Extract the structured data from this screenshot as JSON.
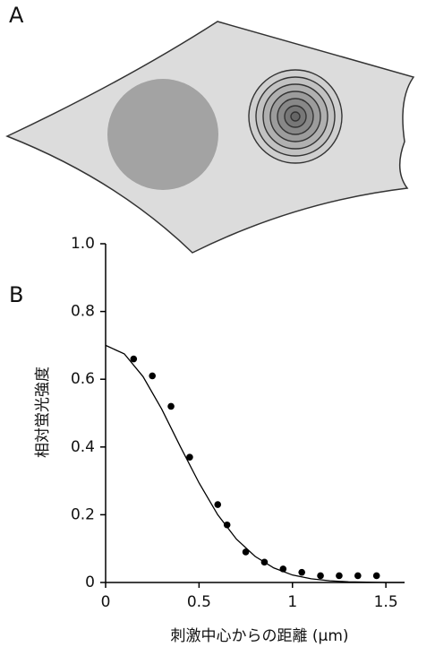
{
  "panels": {
    "a_label": "A",
    "b_label": "B"
  },
  "chart_data": {
    "type": "scatter",
    "ylabel": "相対蛍光強度",
    "xlabel": "刺激中心からの距離 (μm)",
    "xlim": [
      0,
      1.6
    ],
    "ylim": [
      0,
      1
    ],
    "xticks": [
      0,
      0.5,
      1,
      1.5
    ],
    "yticks": [
      0,
      0.2,
      0.4,
      0.6,
      0.8,
      {
        "value": 1,
        "label": "1.0"
      }
    ],
    "points": {
      "color": "#000000",
      "x": [
        0.15,
        0.25,
        0.35,
        0.45,
        0.6,
        0.65,
        0.75,
        0.85,
        0.95,
        1.05,
        1.15,
        1.25,
        1.35,
        1.45
      ],
      "values": [
        0.66,
        0.61,
        0.52,
        0.37,
        0.23,
        0.17,
        0.09,
        0.06,
        0.04,
        0.03,
        0.02,
        0.02,
        0.02,
        0.02
      ]
    },
    "curve": {
      "color": "#000000",
      "x": [
        0,
        0.1,
        0.2,
        0.3,
        0.4,
        0.5,
        0.6,
        0.7,
        0.8,
        0.9,
        1.0,
        1.1,
        1.2,
        1.3,
        1.4,
        1.5,
        1.6
      ],
      "values": [
        0.7,
        0.675,
        0.608,
        0.512,
        0.401,
        0.294,
        0.2,
        0.128,
        0.077,
        0.043,
        0.022,
        0.011,
        0.005,
        0.002,
        0.001,
        0,
        0
      ]
    }
  }
}
